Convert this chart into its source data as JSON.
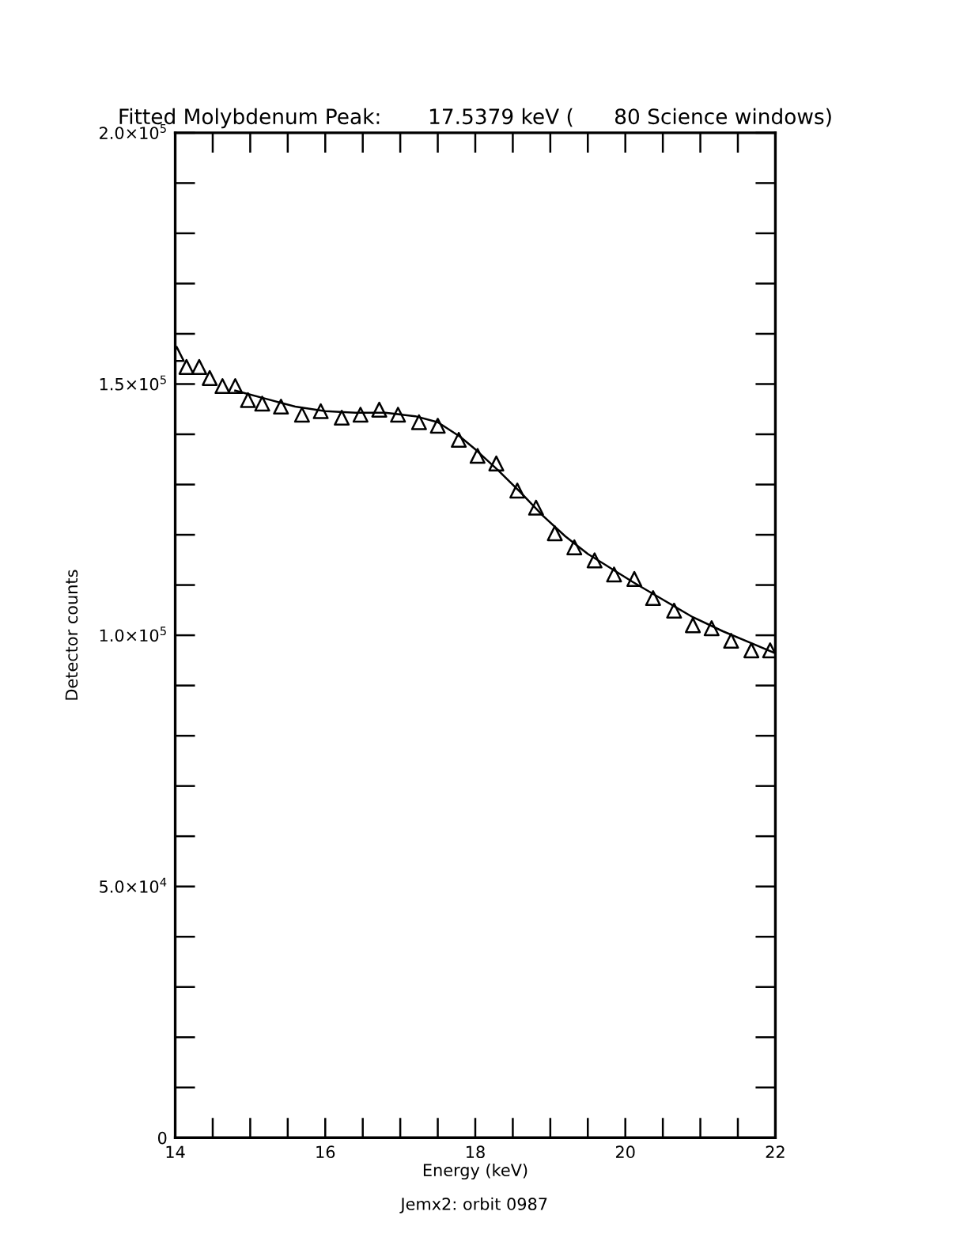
{
  "chart_data": {
    "type": "scatter",
    "title": "Fitted Molybdenum Peak:       17.5379 keV (      80 Science windows)",
    "xlabel": "Energy (keV)",
    "ylabel": "Detector counts",
    "annotations": [
      "Jemx2: orbit 0987"
    ],
    "xlim": [
      14,
      22
    ],
    "ylim": [
      0,
      200000
    ],
    "xticks": [
      14,
      {
        "value": 14.5,
        "label": null
      },
      {
        "value": 15,
        "label": null
      },
      {
        "value": 15.5,
        "label": null
      },
      16,
      {
        "value": 16.5,
        "label": null
      },
      {
        "value": 17,
        "label": null
      },
      {
        "value": 17.5,
        "label": null
      },
      18,
      {
        "value": 18.5,
        "label": null
      },
      {
        "value": 19,
        "label": null
      },
      {
        "value": 19.5,
        "label": null
      },
      20,
      {
        "value": 20.5,
        "label": null
      },
      {
        "value": 21,
        "label": null
      },
      {
        "value": 21.5,
        "label": null
      },
      22
    ],
    "yticks": [
      0,
      {
        "value": 10000,
        "label": null
      },
      {
        "value": 20000,
        "label": null
      },
      {
        "value": 30000,
        "label": null
      },
      {
        "value": 40000,
        "label": null
      },
      {
        "value": 50000,
        "label": "5.0×10$^{4}$"
      },
      {
        "value": 60000,
        "label": null
      },
      {
        "value": 70000,
        "label": null
      },
      {
        "value": 80000,
        "label": null
      },
      {
        "value": 90000,
        "label": null
      },
      {
        "value": 100000,
        "label": "1.0×10$^{5}$"
      },
      {
        "value": 110000,
        "label": null
      },
      {
        "value": 120000,
        "label": null
      },
      {
        "value": 130000,
        "label": null
      },
      {
        "value": 140000,
        "label": null
      },
      {
        "value": 150000,
        "label": "1.5×10$^{5}$"
      },
      {
        "value": 160000,
        "label": null
      },
      {
        "value": 170000,
        "label": null
      },
      {
        "value": 180000,
        "label": null
      },
      {
        "value": 190000,
        "label": null
      },
      {
        "value": 200000,
        "label": "2.0×10$^{5}$"
      }
    ],
    "grid": false,
    "legend": false,
    "series": [
      {
        "color": "#000000",
        "marker": "triangle",
        "x": [
          14.02,
          14.15,
          14.32,
          14.46,
          14.63,
          14.8,
          14.97,
          15.16,
          15.41,
          15.69,
          15.94,
          16.22,
          16.47,
          16.72,
          16.97,
          17.25,
          17.5,
          17.78,
          18.03,
          18.28,
          18.56,
          18.81,
          19.06,
          19.32,
          19.59,
          19.85,
          20.12,
          20.37,
          20.65,
          20.9,
          21.15,
          21.41,
          21.68,
          21.93
        ],
        "values": [
          156000,
          153400,
          153400,
          151200,
          149600,
          149600,
          146800,
          146100,
          145500,
          143900,
          144600,
          143300,
          143900,
          144900,
          143900,
          142400,
          141700,
          138900,
          135700,
          134200,
          128800,
          125400,
          120300,
          117500,
          114900,
          112100,
          111200,
          107400,
          104900,
          102000,
          101400,
          98900,
          97000,
          97000
        ]
      },
      {
        "type": "line",
        "color": "#000000",
        "marker": "none",
        "line_style": "solid",
        "x": [
          14.8,
          15.2,
          15.6,
          16.0,
          16.4,
          16.8,
          17.2,
          17.5,
          17.8,
          18.0,
          18.3,
          18.6,
          18.9,
          19.2,
          19.5,
          19.8,
          20.1,
          20.5,
          20.9,
          21.3,
          21.7,
          22.0
        ],
        "values": [
          148700,
          147100,
          145500,
          144600,
          144300,
          144300,
          143600,
          142400,
          139500,
          137000,
          132900,
          128500,
          123800,
          119700,
          116200,
          113400,
          110600,
          107100,
          103600,
          100800,
          98300,
          96400
        ]
      }
    ]
  }
}
